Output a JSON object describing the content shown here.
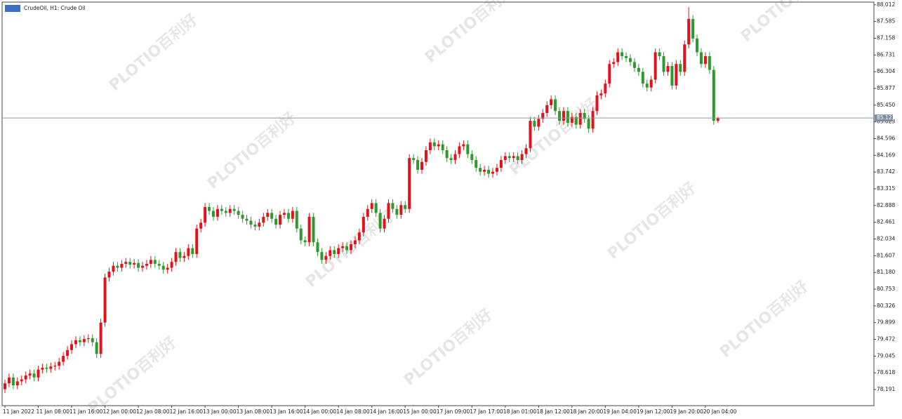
{
  "chart_data": {
    "type": "candlestick",
    "title": "CrudeOil, H1:  Crude Oil",
    "watermark": [
      "PLOTIO",
      "百利好"
    ],
    "current_price": {
      "value": 85.121,
      "label": "85.121"
    },
    "up_color": "#e3121a",
    "down_color": "#2e9a2e",
    "ylim": [
      77.78,
      88.08
    ],
    "yticks": [
      88.012,
      87.585,
      87.158,
      86.731,
      86.304,
      85.877,
      {
        "value": 85.45,
        "label": "85.450"
      },
      85.023,
      84.596,
      84.169,
      83.742,
      83.315,
      82.888,
      82.461,
      82.034,
      81.607,
      {
        "value": 81.18,
        "label": "81.180"
      },
      80.753,
      80.326,
      79.899,
      79.472,
      79.045,
      78.618,
      78.191
    ],
    "categories": [
      "11 Jan 2022",
      null,
      null,
      null,
      null,
      null,
      null,
      null,
      "11 Jan 08:00",
      null,
      null,
      null,
      null,
      null,
      null,
      null,
      "11 Jan 16:00",
      null,
      null,
      null,
      null,
      null,
      null,
      null,
      "12 Jan 00:00",
      null,
      null,
      null,
      null,
      null,
      null,
      null,
      "12 Jan 08:00",
      null,
      null,
      null,
      null,
      null,
      null,
      null,
      "12 Jan 16:00",
      null,
      null,
      null,
      null,
      null,
      null,
      null,
      "13 Jan 00:00",
      null,
      null,
      null,
      null,
      null,
      null,
      null,
      "13 Jan 08:00",
      null,
      null,
      null,
      null,
      null,
      null,
      null,
      "13 Jan 16:00",
      null,
      null,
      null,
      null,
      null,
      null,
      null,
      "14 Jan 00:00",
      null,
      null,
      null,
      null,
      null,
      null,
      null,
      "14 Jan 08:00",
      null,
      null,
      null,
      null,
      null,
      null,
      null,
      "14 Jan 16:00",
      null,
      null,
      null,
      null,
      null,
      null,
      null,
      "15 Jan 00:00",
      null,
      null,
      null,
      null,
      null,
      null,
      null,
      "17 Jan 09:00",
      null,
      null,
      null,
      null,
      null,
      null,
      null,
      "17 Jan 17:00",
      null,
      null,
      null,
      null,
      null,
      null,
      null,
      "18 Jan 01:00",
      null,
      null,
      null,
      null,
      null,
      null,
      null,
      "18 Jan 12:00",
      null,
      null,
      null,
      null,
      null,
      null,
      null,
      "18 Jan 20:00",
      null,
      null,
      null,
      null,
      null,
      null,
      null,
      "19 Jan 04:00",
      null,
      null,
      null,
      null,
      null,
      null,
      null,
      "19 Jan 12:00",
      null,
      null,
      null,
      null,
      null,
      null,
      null,
      "19 Jan 20:00",
      null,
      null,
      null,
      null,
      null,
      null,
      null,
      "20 Jan 04:00",
      null,
      null,
      null
    ],
    "series": [
      {
        "open": [
          78.2,
          78.35,
          78.5,
          78.3,
          78.4,
          78.45,
          78.55,
          78.6,
          78.5,
          78.7,
          78.75,
          78.72,
          78.78,
          78.8,
          78.9,
          79.05,
          79.2,
          79.35,
          79.45,
          79.4,
          79.48,
          79.5,
          79.4,
          79.1,
          79.9,
          81.05,
          81.2,
          81.35,
          81.3,
          81.4,
          81.45,
          81.38,
          81.42,
          81.3,
          81.35,
          81.4,
          81.5,
          81.4,
          81.35,
          81.25,
          81.3,
          81.45,
          81.7,
          81.55,
          81.6,
          81.8,
          81.65,
          82.3,
          82.45,
          82.85,
          82.75,
          82.6,
          82.8,
          82.75,
          82.7,
          82.8,
          82.75,
          82.65,
          82.55,
          82.5,
          82.4,
          82.35,
          82.45,
          82.6,
          82.7,
          82.55,
          82.4,
          82.65,
          82.7,
          82.55,
          82.75,
          82.3,
          82.0,
          81.95,
          82.6,
          81.95,
          81.7,
          81.5,
          81.6,
          81.75,
          81.65,
          81.8,
          81.85,
          81.75,
          81.9,
          82.0,
          82.2,
          82.6,
          82.8,
          82.95,
          82.7,
          82.3,
          82.55,
          82.95,
          82.8,
          82.65,
          82.9,
          82.8,
          84.1,
          84.05,
          83.8,
          84.0,
          84.3,
          84.5,
          84.4,
          84.45,
          84.3,
          84.1,
          84.05,
          84.2,
          84.4,
          84.45,
          84.2,
          84.05,
          83.85,
          83.75,
          83.8,
          83.7,
          83.75,
          83.85,
          84.05,
          84.15,
          84.1,
          84.15,
          84.05,
          84.2,
          84.35,
          85.05,
          84.9,
          85.1,
          85.25,
          85.45,
          85.6,
          85.3,
          85.05,
          85.3,
          85.0,
          85.15,
          84.95,
          85.25,
          85.1,
          84.85,
          85.3,
          85.7,
          85.75,
          86.0,
          86.5,
          86.55,
          86.8,
          86.7,
          86.65,
          86.55,
          86.4,
          86.3,
          86.0,
          85.9,
          86.1,
          86.8,
          86.7,
          86.3,
          86.45,
          85.95,
          86.5,
          86.3,
          87.0,
          87.65,
          87.15,
          86.8,
          86.5,
          86.7,
          86.35,
          85.05
        ],
        "high": [
          78.45,
          78.6,
          78.6,
          78.5,
          78.55,
          78.65,
          78.7,
          78.7,
          78.8,
          78.85,
          78.85,
          78.88,
          78.9,
          79.0,
          79.15,
          79.3,
          79.45,
          79.55,
          79.55,
          79.58,
          79.6,
          79.6,
          79.5,
          80.0,
          81.15,
          81.3,
          81.45,
          81.45,
          81.5,
          81.55,
          81.55,
          81.52,
          81.52,
          81.45,
          81.5,
          81.6,
          81.6,
          81.5,
          81.45,
          81.4,
          81.55,
          81.8,
          81.8,
          81.7,
          81.9,
          81.9,
          82.4,
          82.55,
          82.95,
          82.95,
          82.85,
          82.9,
          82.9,
          82.85,
          82.9,
          82.9,
          82.85,
          82.75,
          82.65,
          82.6,
          82.5,
          82.55,
          82.7,
          82.8,
          82.8,
          82.65,
          82.75,
          82.8,
          82.8,
          82.85,
          82.85,
          82.4,
          82.1,
          82.7,
          82.7,
          82.05,
          81.8,
          81.7,
          81.85,
          81.85,
          81.9,
          81.95,
          81.95,
          82.0,
          82.1,
          82.3,
          82.7,
          82.9,
          83.05,
          83.05,
          82.8,
          82.65,
          83.05,
          83.05,
          82.9,
          83.0,
          83.0,
          84.2,
          84.2,
          84.15,
          84.1,
          84.4,
          84.6,
          84.6,
          84.55,
          84.55,
          84.4,
          84.2,
          84.3,
          84.5,
          84.55,
          84.55,
          84.3,
          84.15,
          83.95,
          83.9,
          83.9,
          83.85,
          83.95,
          84.15,
          84.25,
          84.25,
          84.25,
          84.25,
          84.3,
          84.45,
          85.15,
          85.15,
          85.2,
          85.35,
          85.55,
          85.7,
          85.7,
          85.4,
          85.4,
          85.4,
          85.25,
          85.25,
          85.35,
          85.35,
          85.2,
          85.4,
          85.8,
          85.85,
          86.1,
          86.6,
          86.65,
          86.9,
          86.9,
          86.8,
          86.75,
          86.65,
          86.5,
          86.4,
          86.1,
          86.2,
          86.9,
          86.9,
          86.8,
          86.55,
          86.55,
          86.6,
          86.6,
          87.1,
          87.95,
          87.75,
          87.25,
          86.9,
          86.8,
          86.8,
          86.45,
          85.15
        ],
        "low": [
          78.1,
          78.25,
          78.2,
          78.2,
          78.3,
          78.35,
          78.45,
          78.4,
          78.4,
          78.6,
          78.62,
          78.62,
          78.68,
          78.7,
          78.8,
          78.95,
          79.1,
          79.25,
          79.3,
          79.3,
          79.38,
          79.3,
          79.0,
          79.0,
          79.8,
          80.95,
          81.1,
          81.2,
          81.2,
          81.3,
          81.28,
          81.28,
          81.2,
          81.2,
          81.25,
          81.3,
          81.3,
          81.25,
          81.15,
          81.15,
          81.2,
          81.35,
          81.45,
          81.45,
          81.5,
          81.55,
          81.55,
          82.2,
          82.35,
          82.65,
          82.5,
          82.5,
          82.65,
          82.6,
          82.6,
          82.65,
          82.55,
          82.45,
          82.4,
          82.3,
          82.25,
          82.25,
          82.35,
          82.5,
          82.45,
          82.3,
          82.3,
          82.55,
          82.45,
          82.45,
          82.2,
          81.9,
          81.85,
          81.85,
          81.85,
          81.6,
          81.4,
          81.4,
          81.5,
          81.55,
          81.55,
          81.7,
          81.65,
          81.65,
          81.8,
          81.9,
          82.1,
          82.5,
          82.7,
          82.6,
          82.2,
          82.2,
          82.45,
          82.7,
          82.55,
          82.55,
          82.7,
          82.7,
          83.95,
          83.7,
          83.7,
          83.9,
          84.2,
          84.3,
          84.3,
          84.2,
          84.0,
          83.95,
          83.95,
          84.1,
          84.3,
          84.1,
          83.95,
          83.75,
          83.65,
          83.65,
          83.6,
          83.6,
          83.65,
          83.75,
          83.95,
          84.0,
          84.0,
          83.95,
          83.95,
          84.1,
          84.25,
          84.8,
          84.8,
          85.0,
          85.15,
          85.35,
          85.2,
          84.95,
          84.95,
          84.9,
          84.9,
          84.85,
          84.85,
          85.0,
          84.75,
          84.75,
          85.2,
          85.6,
          85.65,
          85.9,
          86.4,
          86.45,
          86.6,
          86.55,
          86.45,
          86.3,
          86.2,
          85.9,
          85.8,
          85.8,
          86.0,
          86.6,
          86.2,
          86.2,
          85.85,
          85.85,
          86.2,
          86.2,
          86.9,
          87.05,
          86.7,
          86.4,
          86.4,
          86.25,
          84.95,
          85.0
        ],
        "close": [
          78.35,
          78.5,
          78.3,
          78.4,
          78.45,
          78.55,
          78.6,
          78.5,
          78.7,
          78.75,
          78.72,
          78.78,
          78.8,
          78.9,
          79.05,
          79.2,
          79.35,
          79.45,
          79.4,
          79.48,
          79.5,
          79.4,
          79.1,
          79.9,
          81.05,
          81.2,
          81.35,
          81.3,
          81.4,
          81.45,
          81.38,
          81.42,
          81.3,
          81.35,
          81.4,
          81.5,
          81.4,
          81.35,
          81.25,
          81.3,
          81.45,
          81.7,
          81.55,
          81.6,
          81.8,
          81.65,
          82.3,
          82.45,
          82.85,
          82.75,
          82.6,
          82.8,
          82.75,
          82.7,
          82.8,
          82.75,
          82.65,
          82.55,
          82.5,
          82.4,
          82.35,
          82.45,
          82.6,
          82.7,
          82.55,
          82.4,
          82.65,
          82.7,
          82.55,
          82.75,
          82.3,
          82.0,
          81.95,
          82.6,
          81.95,
          81.7,
          81.5,
          81.6,
          81.75,
          81.65,
          81.8,
          81.85,
          81.75,
          81.9,
          82.0,
          82.2,
          82.6,
          82.8,
          82.95,
          82.7,
          82.3,
          82.55,
          82.95,
          82.8,
          82.65,
          82.9,
          82.8,
          84.1,
          84.05,
          83.8,
          84.0,
          84.3,
          84.5,
          84.4,
          84.45,
          84.3,
          84.1,
          84.05,
          84.2,
          84.4,
          84.45,
          84.2,
          84.05,
          83.85,
          83.75,
          83.8,
          83.7,
          83.75,
          83.85,
          84.05,
          84.15,
          84.1,
          84.15,
          84.05,
          84.2,
          84.35,
          85.05,
          84.9,
          85.1,
          85.25,
          85.45,
          85.6,
          85.3,
          85.05,
          85.3,
          85.0,
          85.15,
          84.95,
          85.25,
          85.1,
          84.85,
          85.3,
          85.7,
          85.75,
          86.0,
          86.5,
          86.55,
          86.8,
          86.7,
          86.65,
          86.55,
          86.4,
          86.3,
          86.0,
          85.9,
          86.1,
          86.8,
          86.7,
          86.3,
          86.45,
          85.95,
          86.5,
          86.3,
          87.0,
          87.65,
          87.15,
          86.8,
          86.5,
          86.7,
          86.35,
          85.05,
          85.12
        ]
      }
    ]
  }
}
